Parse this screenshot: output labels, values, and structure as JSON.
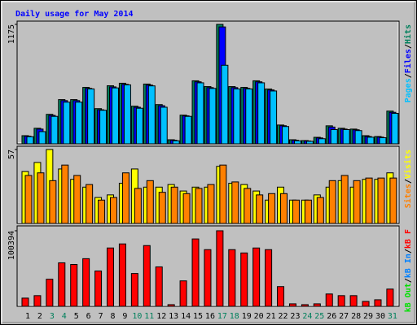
{
  "chart_data": [
    {
      "type": "bar",
      "title": "Daily usage for May 2014",
      "categories": [
        "1",
        "2",
        "3",
        "4",
        "5",
        "6",
        "7",
        "8",
        "9",
        "10",
        "11",
        "12",
        "13",
        "14",
        "15",
        "16",
        "17",
        "18",
        "19",
        "20",
        "21",
        "22",
        "23",
        "24",
        "25",
        "26",
        "27",
        "28",
        "29",
        "30",
        "31"
      ],
      "category_colors": [
        "#000000",
        "#000000",
        "#00805c",
        "#00805c",
        "#000000",
        "#000000",
        "#000000",
        "#000000",
        "#000000",
        "#00805c",
        "#00805c",
        "#000000",
        "#000000",
        "#000000",
        "#000000",
        "#000000",
        "#00805c",
        "#00805c",
        "#000000",
        "#000000",
        "#000000",
        "#000000",
        "#000000",
        "#00805c",
        "#00805c",
        "#000000",
        "#000000",
        "#000000",
        "#000000",
        "#000000",
        "#00805c"
      ],
      "legend_separator": "/",
      "ylim": [
        0,
        1175
      ],
      "yticks": [
        1175
      ],
      "series": [
        {
          "name": "Hits",
          "color": "#00805c",
          "values": [
            80,
            153,
            290,
            435,
            435,
            555,
            346,
            571,
            596,
            370,
            588,
            386,
            40,
            282,
            620,
            563,
            1175,
            563,
            555,
            620,
            539,
            185,
            40,
            32,
            64,
            177,
            153,
            145,
            80,
            72,
            322
          ]
        },
        {
          "name": "Files",
          "color": "#0000ff",
          "values": [
            75,
            145,
            280,
            425,
            425,
            545,
            335,
            560,
            585,
            360,
            578,
            375,
            35,
            275,
            610,
            553,
            1150,
            553,
            545,
            610,
            530,
            178,
            35,
            28,
            58,
            165,
            145,
            138,
            72,
            66,
            310
          ]
        },
        {
          "name": "Pages",
          "color": "#00c0ff",
          "values": [
            70,
            120,
            270,
            410,
            410,
            540,
            330,
            550,
            580,
            350,
            570,
            360,
            30,
            270,
            600,
            545,
            773,
            540,
            540,
            600,
            520,
            170,
            30,
            25,
            50,
            140,
            140,
            130,
            65,
            60,
            300
          ]
        }
      ]
    },
    {
      "type": "bar",
      "ylim": [
        0,
        57
      ],
      "yticks": [
        57
      ],
      "legend_separator": "/",
      "series": [
        {
          "name": "Visits",
          "color": "#ffff00",
          "values": [
            40,
            47,
            57,
            42,
            34,
            28,
            20,
            22,
            31,
            42,
            28,
            28,
            30,
            25,
            28,
            28,
            44,
            31,
            30,
            25,
            18,
            28,
            18,
            18,
            22,
            28,
            33,
            28,
            34,
            34,
            39
          ]
        },
        {
          "name": "Sites",
          "color": "#ff8000",
          "values": [
            37,
            39,
            33,
            45,
            37,
            30,
            18,
            20,
            39,
            27,
            33,
            24,
            28,
            23,
            27,
            30,
            45,
            32,
            27,
            22,
            23,
            23,
            18,
            18,
            20,
            33,
            37,
            33,
            35,
            35,
            35
          ]
        }
      ]
    },
    {
      "type": "bar",
      "ylim": [
        0,
        100394
      ],
      "yticks": [
        100394
      ],
      "legend_separator": "/",
      "series": [
        {
          "name": "kB F",
          "color": "#ff0000",
          "values": [
            10900,
            14200,
            36000,
            57800,
            55600,
            63300,
            46900,
            77500,
            82900,
            43600,
            80700,
            52400,
            2200,
            33800,
            89500,
            75300,
            100394,
            75300,
            70900,
            77500,
            75300,
            26200,
            3300,
            2200,
            3300,
            16400,
            14200,
            14200,
            6500,
            8700,
            22900
          ]
        },
        {
          "name": "kB In",
          "color": "#0080ff",
          "values": [
            0,
            0,
            0,
            0,
            0,
            0,
            0,
            0,
            0,
            0,
            0,
            0,
            0,
            0,
            0,
            0,
            0,
            0,
            0,
            0,
            0,
            0,
            0,
            0,
            0,
            0,
            0,
            0,
            0,
            0,
            0
          ]
        },
        {
          "name": "kB Out",
          "color": "#00e000",
          "values": [
            0,
            0,
            0,
            0,
            0,
            0,
            0,
            0,
            0,
            0,
            0,
            0,
            0,
            0,
            0,
            0,
            0,
            0,
            0,
            0,
            0,
            0,
            0,
            0,
            0,
            0,
            0,
            0,
            0,
            0,
            0
          ]
        }
      ]
    }
  ]
}
